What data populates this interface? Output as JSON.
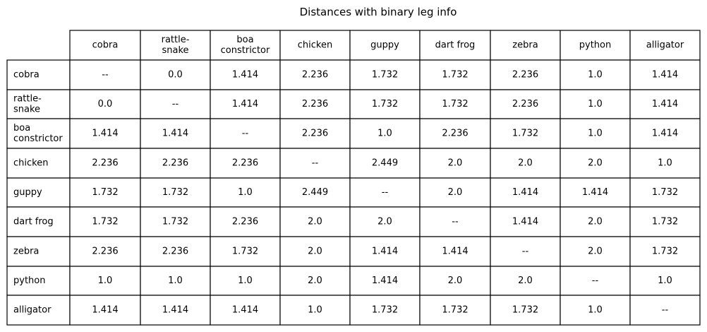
{
  "chart_data": {
    "type": "table",
    "title": "Distances with binary leg info",
    "columns": [
      "cobra",
      "rattle-\nsnake",
      "boa\nconstrictor",
      "chicken",
      "guppy",
      "dart frog",
      "zebra",
      "python",
      "alligator"
    ],
    "rows": [
      "cobra",
      "rattle-\nsnake",
      "boa\nconstrictor",
      "chicken",
      "guppy",
      "dart frog",
      "zebra",
      "python",
      "alligator"
    ],
    "cells": [
      [
        "--",
        "0.0",
        "1.414",
        "2.236",
        "1.732",
        "1.732",
        "2.236",
        "1.0",
        "1.414"
      ],
      [
        "0.0",
        "--",
        "1.414",
        "2.236",
        "1.732",
        "1.732",
        "2.236",
        "1.0",
        "1.414"
      ],
      [
        "1.414",
        "1.414",
        "--",
        "2.236",
        "1.0",
        "2.236",
        "1.732",
        "1.0",
        "1.414"
      ],
      [
        "2.236",
        "2.236",
        "2.236",
        "--",
        "2.449",
        "2.0",
        "2.0",
        "2.0",
        "1.0"
      ],
      [
        "1.732",
        "1.732",
        "1.0",
        "2.449",
        "--",
        "2.0",
        "1.414",
        "1.414",
        "1.732"
      ],
      [
        "1.732",
        "1.732",
        "2.236",
        "2.0",
        "2.0",
        "--",
        "1.414",
        "2.0",
        "1.732"
      ],
      [
        "2.236",
        "2.236",
        "1.732",
        "2.0",
        "1.414",
        "1.414",
        "--",
        "2.0",
        "1.732"
      ],
      [
        "1.0",
        "1.0",
        "1.0",
        "2.0",
        "1.414",
        "2.0",
        "2.0",
        "--",
        "1.0"
      ],
      [
        "1.414",
        "1.414",
        "1.414",
        "1.0",
        "1.732",
        "1.732",
        "1.732",
        "1.0",
        "--"
      ]
    ]
  }
}
